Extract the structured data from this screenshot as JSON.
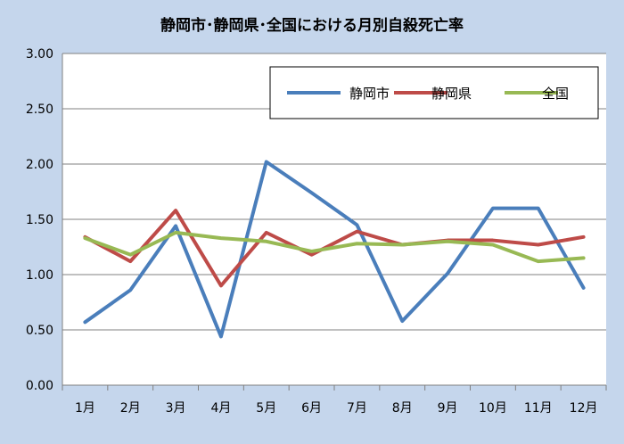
{
  "chart_data": {
    "type": "line",
    "title": "静岡市･静岡県･全国における月別自殺死亡率",
    "categories": [
      "1月",
      "2月",
      "3月",
      "4月",
      "5月",
      "6月",
      "7月",
      "8月",
      "9月",
      "10月",
      "11月",
      "12月"
    ],
    "series": [
      {
        "name": "静岡市",
        "color": "#4a7ebb",
        "values": [
          0.57,
          0.86,
          1.44,
          0.44,
          2.02,
          1.74,
          1.45,
          0.58,
          1.01,
          1.6,
          1.6,
          0.88
        ]
      },
      {
        "name": "静岡県",
        "color": "#be4b48",
        "values": [
          1.34,
          1.12,
          1.58,
          0.9,
          1.38,
          1.18,
          1.39,
          1.27,
          1.31,
          1.31,
          1.27,
          1.34
        ]
      },
      {
        "name": "全国",
        "color": "#98b954",
        "values": [
          1.33,
          1.18,
          1.38,
          1.33,
          1.3,
          1.21,
          1.28,
          1.27,
          1.3,
          1.27,
          1.12,
          1.15
        ]
      }
    ],
    "ylim": [
      0,
      3
    ],
    "yticks": [
      "0.00",
      "0.50",
      "1.00",
      "1.50",
      "2.00",
      "2.50",
      "3.00"
    ],
    "xlabel": "",
    "ylabel": "",
    "grid": true,
    "legend_position": "top-right"
  }
}
